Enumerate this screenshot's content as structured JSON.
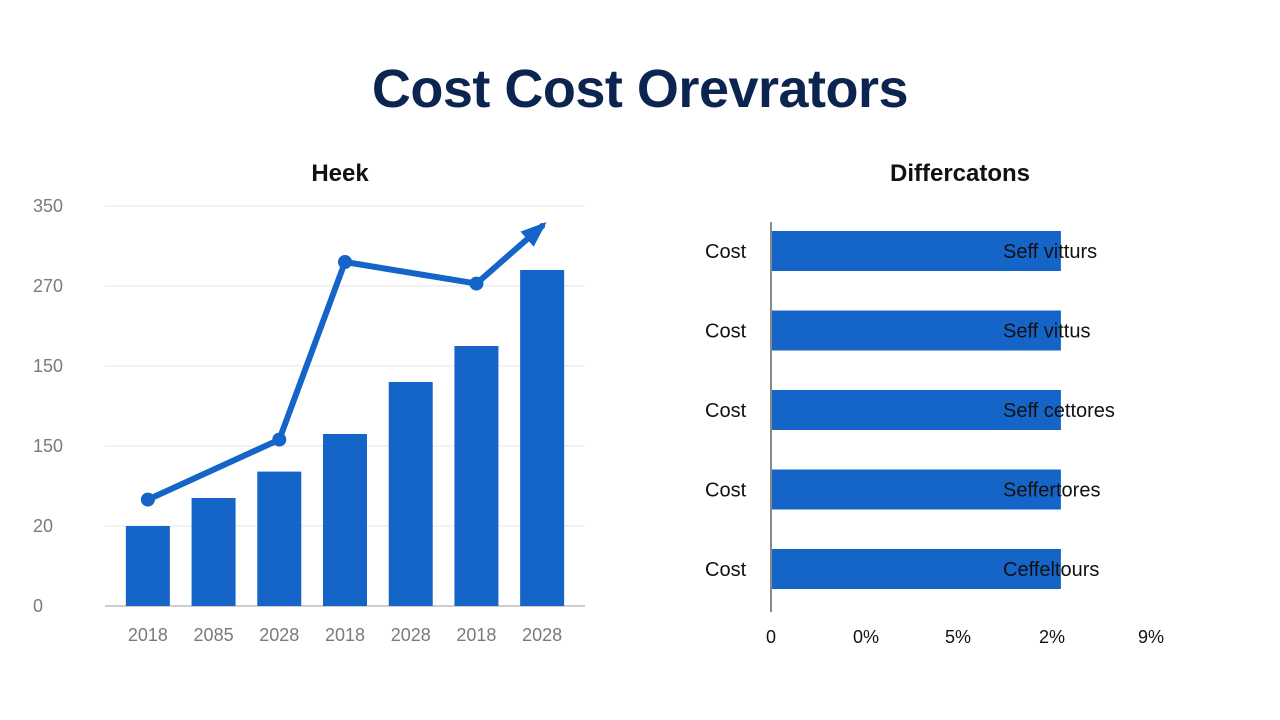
{
  "title": "Cost Cost Orevrators",
  "colors": {
    "bar": "#1565c8",
    "title": "#0c2550",
    "grid": "#e6e6e6",
    "axis": "#bdbdbd"
  },
  "chart_data": [
    {
      "type": "bar+line",
      "title": "Heek",
      "categories": [
        "2018",
        "2085",
        "2028",
        "2018",
        "2028",
        "2018",
        "2028"
      ],
      "y_ticks": [
        "0",
        "20",
        "150",
        "150",
        "270",
        "350"
      ],
      "bar_values_tick_index": [
        1,
        1.35,
        1.68,
        2.15,
        2.8,
        3.25,
        4.2
      ],
      "line_points": [
        {
          "x_index": 0,
          "tick_index": 1.33
        },
        {
          "x_index": 2,
          "tick_index": 2.08
        },
        {
          "x_index": 3,
          "tick_index": 4.3
        },
        {
          "x_index": 5,
          "tick_index": 4.03
        },
        {
          "x_index": 6,
          "tick_index": 4.75,
          "arrow": true
        }
      ],
      "grid": true
    },
    {
      "type": "hbar",
      "title": "Differcatons",
      "categories": [
        "Cost",
        "Cost",
        "Cost",
        "Cost",
        "Cost"
      ],
      "bar_labels": [
        "Seff vitturs",
        "Seff vittus",
        "Seff cettores",
        "Seffertores",
        "Ceffeltours"
      ],
      "x_ticks": [
        "0",
        "0%",
        "5%",
        "2%",
        "9%"
      ],
      "values_tick_index": [
        2.7,
        2.7,
        2.7,
        2.7,
        2.7
      ]
    }
  ]
}
